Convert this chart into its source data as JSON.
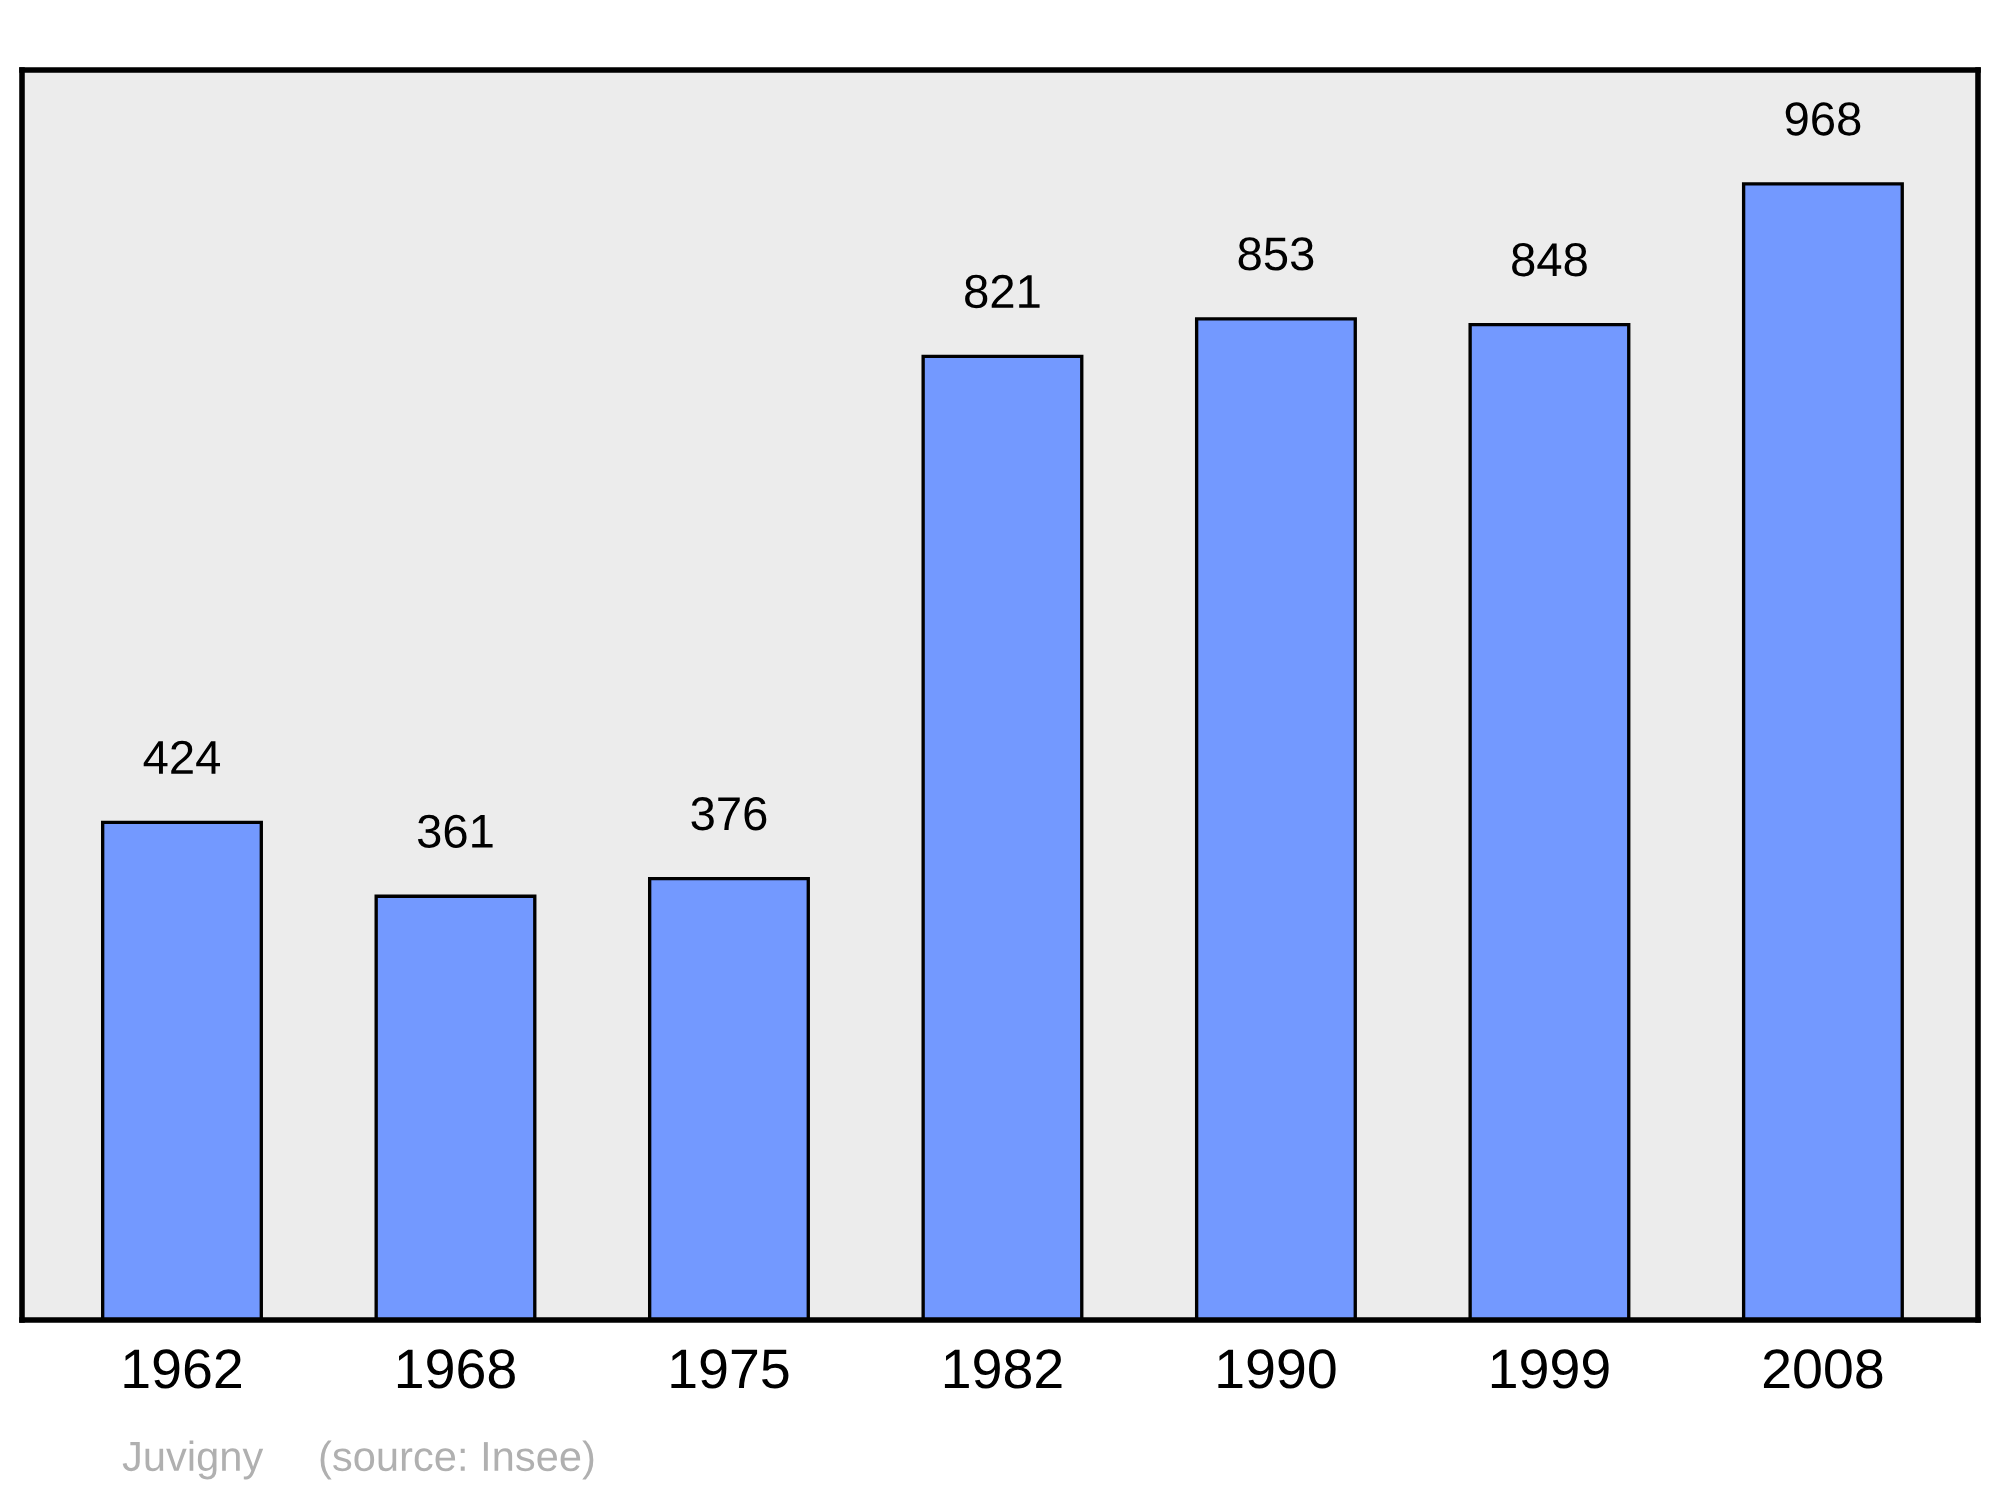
{
  "chart_data": {
    "type": "bar",
    "categories": [
      "1962",
      "1968",
      "1975",
      "1982",
      "1990",
      "1999",
      "2008"
    ],
    "values": [
      424,
      361,
      376,
      821,
      853,
      848,
      968
    ],
    "color": "#7399ff",
    "ylim": [
      0,
      1065
    ],
    "tick_labels": "x",
    "data_labels": true,
    "grid": false,
    "legend": false,
    "annotations": [
      "Juvigny",
      "(source: Insee)"
    ]
  }
}
